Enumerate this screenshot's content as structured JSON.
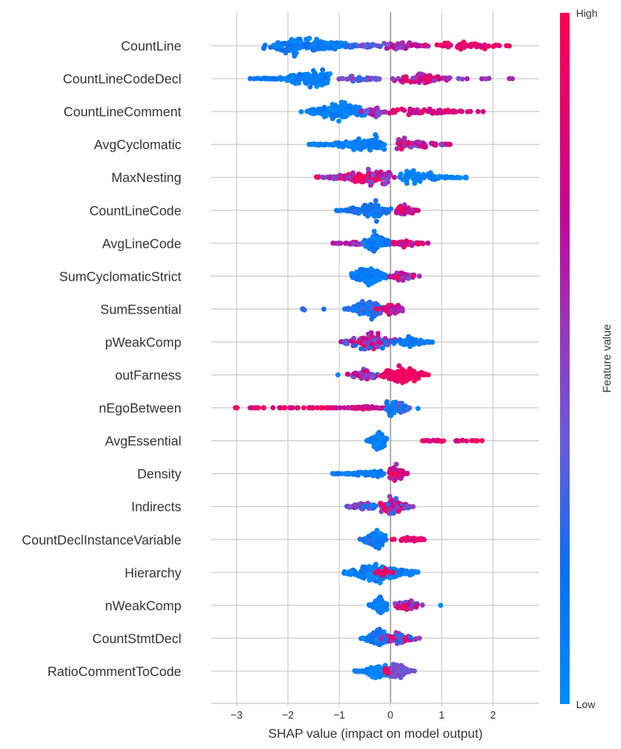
{
  "chart_data": {
    "type": "scatter",
    "subtype": "shap-beeswarm",
    "title": "",
    "xlabel": "SHAP value (impact on model output)",
    "ylabel": "",
    "xlim": [
      -3.5,
      2.9
    ],
    "xticks": [
      -3,
      -2,
      -1,
      0,
      1,
      2
    ],
    "xtick_labels": [
      "−3",
      "−2",
      "−1",
      "0",
      "1",
      "2"
    ],
    "grid": true,
    "legend": {
      "type": "colorbar",
      "placement": "right",
      "title": "Feature value",
      "high_label": "High",
      "low_label": "Low",
      "colors": [
        "#008bfb",
        "#0e6ef0",
        "#6a5bd9",
        "#9b35b8",
        "#c0099b",
        "#e3056f",
        "#ff0052"
      ]
    },
    "features": [
      {
        "name": "CountLine",
        "clusters": [
          {
            "from": -2.6,
            "to": -0.2,
            "peak": -1.85,
            "n": 150,
            "spread": 1.0,
            "color": [
              0.0,
              0.2
            ]
          },
          {
            "from": -0.9,
            "to": -0.1,
            "peak": -0.5,
            "n": 20,
            "spread": 0.3,
            "color": [
              0.15,
              0.45
            ]
          },
          {
            "from": -0.15,
            "to": 0.9,
            "peak": 0.1,
            "n": 50,
            "spread": 0.55,
            "color": [
              0.35,
              0.75
            ]
          },
          {
            "from": 0.6,
            "to": 2.35,
            "peak": 1.5,
            "n": 55,
            "spread": 0.45,
            "color": [
              0.7,
              1.0
            ]
          }
        ]
      },
      {
        "name": "CountLineCodeDecl",
        "clusters": [
          {
            "from": -2.8,
            "to": -1.1,
            "peak": -1.4,
            "n": 120,
            "spread": 1.0,
            "color": [
              0.0,
              0.15
            ]
          },
          {
            "from": -1.2,
            "to": -0.1,
            "peak": -0.7,
            "n": 35,
            "spread": 0.35,
            "color": [
              0.15,
              0.5
            ]
          },
          {
            "from": -0.1,
            "to": 1.3,
            "peak": 0.6,
            "n": 70,
            "spread": 0.7,
            "color": [
              0.45,
              1.0
            ]
          },
          {
            "from": 1.3,
            "to": 2.65,
            "peak": 1.6,
            "n": 8,
            "spread": 0.1,
            "color": [
              0.4,
              0.6
            ]
          }
        ]
      },
      {
        "name": "CountLineComment",
        "clusters": [
          {
            "from": -1.8,
            "to": -0.4,
            "peak": -0.95,
            "n": 140,
            "spread": 1.0,
            "color": [
              0.0,
              0.12
            ]
          },
          {
            "from": -0.6,
            "to": -0.05,
            "peak": -0.3,
            "n": 25,
            "spread": 0.45,
            "color": [
              0.3,
              0.7
            ]
          },
          {
            "from": -0.05,
            "to": 1.85,
            "peak": 0.5,
            "n": 60,
            "spread": 0.4,
            "color": [
              0.55,
              1.0
            ]
          }
        ]
      },
      {
        "name": "AvgCyclomatic",
        "clusters": [
          {
            "from": -1.75,
            "to": -0.05,
            "peak": -0.3,
            "n": 120,
            "spread": 0.95,
            "color": [
              0.0,
              0.12
            ]
          },
          {
            "from": 0.05,
            "to": 1.3,
            "peak": 0.3,
            "n": 65,
            "spread": 0.75,
            "color": [
              0.3,
              0.95
            ]
          }
        ]
      },
      {
        "name": "MaxNesting",
        "clusters": [
          {
            "from": -1.55,
            "to": 0.2,
            "peak": -0.3,
            "n": 130,
            "spread": 0.95,
            "color": [
              0.35,
              1.0
            ]
          },
          {
            "from": 0.15,
            "to": 1.65,
            "peak": 0.35,
            "n": 80,
            "spread": 0.75,
            "color": [
              0.0,
              0.12
            ]
          }
        ]
      },
      {
        "name": "CountLineCode",
        "clusters": [
          {
            "from": -1.1,
            "to": 0.05,
            "peak": -0.3,
            "n": 140,
            "spread": 0.9,
            "color": [
              0.0,
              0.25
            ]
          },
          {
            "from": 0.05,
            "to": 0.55,
            "peak": 0.25,
            "n": 55,
            "spread": 0.6,
            "color": [
              0.5,
              1.0
            ]
          }
        ]
      },
      {
        "name": "AvgLineCode",
        "clusters": [
          {
            "from": -1.15,
            "to": -0.5,
            "peak": -0.6,
            "n": 25,
            "spread": 0.25,
            "color": [
              0.35,
              0.75
            ]
          },
          {
            "from": -0.6,
            "to": 0.05,
            "peak": -0.3,
            "n": 90,
            "spread": 0.95,
            "color": [
              0.0,
              0.2
            ]
          },
          {
            "from": 0.0,
            "to": 0.85,
            "peak": 0.3,
            "n": 55,
            "spread": 0.35,
            "color": [
              0.55,
              1.0
            ]
          }
        ]
      },
      {
        "name": "SumCyclomaticStrict",
        "clusters": [
          {
            "from": -0.8,
            "to": 0.0,
            "peak": -0.45,
            "n": 140,
            "spread": 1.0,
            "color": [
              0.0,
              0.15
            ]
          },
          {
            "from": -0.05,
            "to": 0.6,
            "peak": 0.2,
            "n": 55,
            "spread": 0.55,
            "color": [
              0.3,
              1.0
            ]
          }
        ]
      },
      {
        "name": "SumEssential",
        "clusters": [
          {
            "from": -1.75,
            "to": -1.55,
            "peak": -1.65,
            "n": 4,
            "spread": 0.2,
            "color": [
              0.15,
              0.25
            ]
          },
          {
            "from": -1.35,
            "to": -1.25,
            "peak": -1.3,
            "n": 1,
            "spread": 0.0,
            "color": [
              0.15,
              0.2
            ]
          },
          {
            "from": -0.95,
            "to": -0.1,
            "peak": -0.4,
            "n": 110,
            "spread": 1.0,
            "color": [
              0.0,
              0.3
            ]
          },
          {
            "from": -0.3,
            "to": 0.3,
            "peak": 0.05,
            "n": 50,
            "spread": 0.65,
            "color": [
              0.45,
              1.0
            ]
          }
        ]
      },
      {
        "name": "pWeakComp",
        "clusters": [
          {
            "from": -1.05,
            "to": 0.2,
            "peak": -0.35,
            "n": 110,
            "spread": 1.0,
            "color": [
              0.1,
              1.0
            ]
          },
          {
            "from": 0.05,
            "to": 0.9,
            "peak": 0.3,
            "n": 70,
            "spread": 0.6,
            "color": [
              0.0,
              0.2
            ]
          }
        ]
      },
      {
        "name": "outFarness",
        "clusters": [
          {
            "from": -1.05,
            "to": -0.95,
            "peak": -1.0,
            "n": 1,
            "spread": 0.0,
            "color": [
              0.0,
              0.05
            ]
          },
          {
            "from": -0.9,
            "to": -0.2,
            "peak": -0.5,
            "n": 55,
            "spread": 0.55,
            "color": [
              0.2,
              0.85
            ]
          },
          {
            "from": -0.2,
            "to": 0.8,
            "peak": 0.2,
            "n": 130,
            "spread": 1.0,
            "color": [
              0.8,
              1.0
            ]
          }
        ]
      },
      {
        "name": "nEgoBetween",
        "clusters": [
          {
            "from": -3.3,
            "to": -0.4,
            "peak": -1.4,
            "n": 45,
            "spread": 0.0,
            "color": [
              0.65,
              1.0
            ]
          },
          {
            "from": -0.9,
            "to": -0.05,
            "peak": -0.5,
            "n": 40,
            "spread": 0.2,
            "color": [
              0.55,
              1.0
            ]
          },
          {
            "from": -0.1,
            "to": 0.55,
            "peak": 0.05,
            "n": 60,
            "spread": 1.0,
            "color": [
              0.0,
              0.3
            ]
          }
        ]
      },
      {
        "name": "AvgEssential",
        "clusters": [
          {
            "from": -0.5,
            "to": -0.05,
            "peak": -0.2,
            "n": 120,
            "spread": 1.0,
            "color": [
              0.0,
              0.15
            ]
          },
          {
            "from": 0.2,
            "to": 2.15,
            "peak": 0.9,
            "n": 25,
            "spread": 0.1,
            "color": [
              0.65,
              1.0
            ]
          }
        ]
      },
      {
        "name": "Density",
        "clusters": [
          {
            "from": -1.25,
            "to": -0.05,
            "peak": -0.3,
            "n": 80,
            "spread": 0.35,
            "color": [
              0.0,
              0.2
            ]
          },
          {
            "from": -0.05,
            "to": 0.35,
            "peak": 0.1,
            "n": 60,
            "spread": 1.0,
            "color": [
              0.5,
              1.0
            ]
          }
        ]
      },
      {
        "name": "Indirects",
        "clusters": [
          {
            "from": -0.9,
            "to": -0.25,
            "peak": -0.5,
            "n": 60,
            "spread": 0.5,
            "color": [
              0.0,
              0.6
            ]
          },
          {
            "from": -0.25,
            "to": 0.5,
            "peak": 0.0,
            "n": 100,
            "spread": 1.0,
            "color": [
              0.2,
              1.0
            ]
          }
        ]
      },
      {
        "name": "CountDeclInstanceVariable",
        "clusters": [
          {
            "from": -0.6,
            "to": -0.05,
            "peak": -0.25,
            "n": 120,
            "spread": 1.0,
            "color": [
              0.0,
              0.25
            ]
          },
          {
            "from": 0.0,
            "to": 0.75,
            "peak": 0.4,
            "n": 35,
            "spread": 0.2,
            "color": [
              0.7,
              1.0
            ]
          }
        ]
      },
      {
        "name": "Hierarchy",
        "clusters": [
          {
            "from": -0.95,
            "to": 0.6,
            "peak": -0.25,
            "n": 180,
            "spread": 1.0,
            "color": [
              0.0,
              0.15
            ]
          },
          {
            "from": -0.3,
            "to": 0.1,
            "peak": -0.15,
            "n": 15,
            "spread": 0.5,
            "color": [
              0.7,
              1.0
            ]
          }
        ]
      },
      {
        "name": "nWeakComp",
        "clusters": [
          {
            "from": -0.45,
            "to": -0.05,
            "peak": -0.2,
            "n": 100,
            "spread": 1.0,
            "color": [
              0.0,
              0.12
            ]
          },
          {
            "from": 0.05,
            "to": 0.7,
            "peak": 0.3,
            "n": 55,
            "spread": 0.6,
            "color": [
              0.15,
              1.0
            ]
          },
          {
            "from": 0.95,
            "to": 1.0,
            "peak": 0.98,
            "n": 1,
            "spread": 0.0,
            "color": [
              0.0,
              0.05
            ]
          }
        ]
      },
      {
        "name": "CountStmtDecl",
        "clusters": [
          {
            "from": -0.6,
            "to": 0.05,
            "peak": -0.2,
            "n": 110,
            "spread": 1.0,
            "color": [
              0.0,
              0.25
            ]
          },
          {
            "from": -0.2,
            "to": 0.6,
            "peak": 0.15,
            "n": 60,
            "spread": 0.6,
            "color": [
              0.1,
              1.0
            ]
          }
        ]
      },
      {
        "name": "RatioCommentToCode",
        "clusters": [
          {
            "from": -0.75,
            "to": -0.05,
            "peak": -0.2,
            "n": 110,
            "spread": 0.8,
            "color": [
              0.0,
              0.1
            ]
          },
          {
            "from": -0.1,
            "to": 0.5,
            "peak": 0.1,
            "n": 70,
            "spread": 1.0,
            "color": [
              0.3,
              0.45
            ]
          },
          {
            "from": -0.2,
            "to": 0.05,
            "peak": -0.05,
            "n": 8,
            "spread": 0.5,
            "color": [
              0.85,
              1.0
            ]
          }
        ]
      }
    ]
  }
}
